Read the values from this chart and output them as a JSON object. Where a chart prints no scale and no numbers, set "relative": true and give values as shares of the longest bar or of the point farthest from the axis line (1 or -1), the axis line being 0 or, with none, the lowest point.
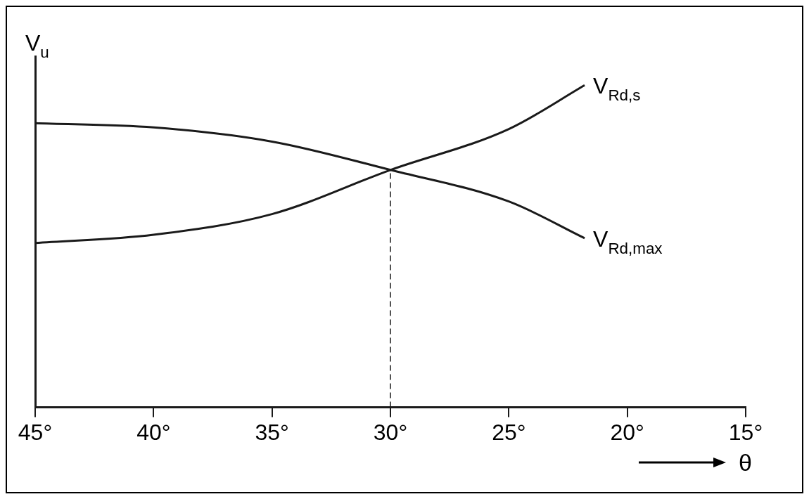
{
  "chart_data": {
    "type": "line",
    "relative": true,
    "ylabel": "V$_{u}$",
    "xlabel": "θ",
    "x": [
      45,
      40,
      35,
      30,
      25,
      21.8
    ],
    "xlim": [
      45,
      15
    ],
    "xticks": [
      {
        "value": 45,
        "label": "45°"
      },
      {
        "value": 40,
        "label": "40°"
      },
      {
        "value": 35,
        "label": "35°"
      },
      {
        "value": 30,
        "label": "30°"
      },
      {
        "value": 25,
        "label": "25°"
      },
      {
        "value": 20,
        "label": "20°"
      },
      {
        "value": 15,
        "label": "15°"
      }
    ],
    "series": [
      {
        "name": "V$_{Rd,s}$",
        "color": "#1a1a1a",
        "values": [
          0.51,
          0.536,
          0.6,
          0.737,
          0.864,
          1
        ]
      },
      {
        "name": "V$_{Rd,max}$",
        "color": "#1a1a1a",
        "values": [
          0.882,
          0.869,
          0.825,
          0.737,
          0.639,
          0.525
        ]
      }
    ],
    "ref_lines": [
      {
        "axis": "x",
        "value": 30,
        "line_style": "dashed",
        "color": "#1a1a1a"
      }
    ],
    "grid": false,
    "legend": false,
    "marker": "none",
    "line_style": "solid"
  }
}
